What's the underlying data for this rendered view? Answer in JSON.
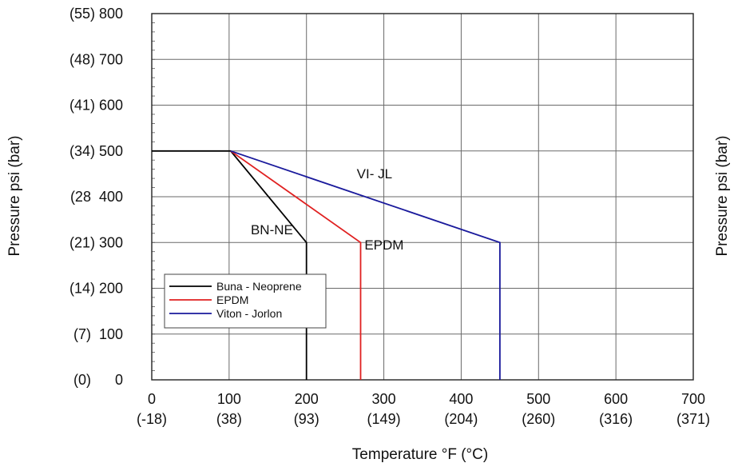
{
  "chart_data": {
    "type": "line",
    "xlabel": "Temperature °F (°C)",
    "ylabel": "Pressure psi (bar)",
    "ylabel_right": "Pressure psi (bar)",
    "xlim": [
      0,
      700
    ],
    "ylim": [
      0,
      800
    ],
    "grid": true,
    "legend_position": "bottom-left",
    "x_ticks": [
      {
        "value": 0,
        "label": "0",
        "sublabel": "(-18)"
      },
      {
        "value": 100,
        "label": "100",
        "sublabel": "(38)"
      },
      {
        "value": 200,
        "label": "200",
        "sublabel": "(93)"
      },
      {
        "value": 300,
        "label": "300",
        "sublabel": "(149)"
      },
      {
        "value": 400,
        "label": "400",
        "sublabel": "(204)"
      },
      {
        "value": 500,
        "label": "500",
        "sublabel": "(260)"
      },
      {
        "value": 600,
        "label": "600",
        "sublabel": "(316)"
      },
      {
        "value": 700,
        "label": "700",
        "sublabel": "(371)"
      }
    ],
    "y_ticks": [
      {
        "value": 800,
        "label": "(55) 800"
      },
      {
        "value": 700,
        "label": "(48) 700"
      },
      {
        "value": 600,
        "label": "(41) 600"
      },
      {
        "value": 500,
        "label": "(34) 500"
      },
      {
        "value": 400,
        "label": "(28  400"
      },
      {
        "value": 300,
        "label": "(21) 300"
      },
      {
        "value": 200,
        "label": "(14) 200"
      },
      {
        "value": 100,
        "label": "(7)  100"
      },
      {
        "value": 0,
        "label": "(0)      0"
      }
    ],
    "series": [
      {
        "name": "Buna - Neoprene",
        "color": "#000000",
        "x": [
          0,
          102,
          200,
          200
        ],
        "y": [
          500,
          500,
          300,
          0
        ]
      },
      {
        "name": "EPDM",
        "color": "#e02020",
        "x": [
          102,
          270,
          270
        ],
        "y": [
          500,
          300,
          0
        ]
      },
      {
        "name": "Viton - Jorlon",
        "color": "#1a1a9c",
        "x": [
          102,
          450,
          450
        ],
        "y": [
          500,
          300,
          0
        ]
      }
    ],
    "annotations": [
      {
        "text": "VI- JL",
        "x": 265,
        "y": 440
      },
      {
        "text": "BN-NE",
        "x": 128,
        "y": 318
      },
      {
        "text": "EPDM",
        "x": 275,
        "y": 285
      }
    ]
  }
}
